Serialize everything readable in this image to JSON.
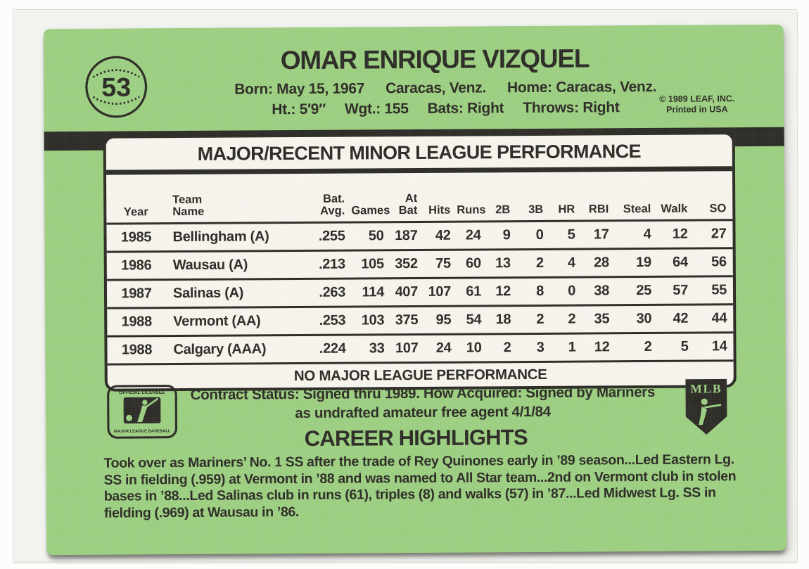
{
  "colors": {
    "card_green": "#9bce80",
    "ink": "#2b2a24",
    "panel": "#f5f3ec"
  },
  "header": {
    "card_number": "53",
    "player_name": "OMAR ENRIQUE VIZQUEL",
    "bio1": [
      "Born: May 15, 1967",
      "Caracas, Venz.",
      "Home: Caracas, Venz."
    ],
    "bio2": [
      "Ht.: 5′9″",
      "Wgt.: 155",
      "Bats: Right",
      "Throws: Right"
    ],
    "copyright_line1": "© 1989 LEAF, INC.",
    "copyright_line2": "Printed in USA"
  },
  "stats_table": {
    "title": "MAJOR/RECENT MINOR LEAGUE PERFORMANCE",
    "columns": [
      {
        "top": "",
        "bottom": "Year"
      },
      {
        "top": "Team",
        "bottom": "Name"
      },
      {
        "top": "Bat.",
        "bottom": "Avg."
      },
      {
        "top": "",
        "bottom": "Games"
      },
      {
        "top": "At",
        "bottom": "Bat"
      },
      {
        "top": "",
        "bottom": "Hits"
      },
      {
        "top": "",
        "bottom": "Runs"
      },
      {
        "top": "",
        "bottom": "2B"
      },
      {
        "top": "",
        "bottom": "3B"
      },
      {
        "top": "",
        "bottom": "HR"
      },
      {
        "top": "",
        "bottom": "RBI"
      },
      {
        "top": "",
        "bottom": "Steal"
      },
      {
        "top": "",
        "bottom": "Walk"
      },
      {
        "top": "",
        "bottom": "SO"
      }
    ],
    "rows": [
      [
        "1985",
        "Bellingham (A)",
        ".255",
        "50",
        "187",
        "42",
        "24",
        "9",
        "0",
        "5",
        "17",
        "4",
        "12",
        "27"
      ],
      [
        "1986",
        "Wausau (A)",
        ".213",
        "105",
        "352",
        "75",
        "60",
        "13",
        "2",
        "4",
        "28",
        "19",
        "64",
        "56"
      ],
      [
        "1987",
        "Salinas (A)",
        ".263",
        "114",
        "407",
        "107",
        "61",
        "12",
        "8",
        "0",
        "38",
        "25",
        "57",
        "55"
      ],
      [
        "1988",
        "Vermont (AA)",
        ".253",
        "103",
        "375",
        "95",
        "54",
        "18",
        "2",
        "2",
        "35",
        "30",
        "42",
        "44"
      ],
      [
        "1988",
        "Calgary (AAA)",
        ".224",
        "33",
        "107",
        "24",
        "10",
        "2",
        "3",
        "1",
        "12",
        "2",
        "5",
        "14"
      ]
    ],
    "footer": "NO MAJOR LEAGUE PERFORMANCE"
  },
  "contract": {
    "line1": "Contract Status: Signed thru 1989. How Acquired: Signed by Mariners",
    "line2": "as undrafted amateur free agent 4/1/84"
  },
  "career": {
    "heading": "CAREER HIGHLIGHTS",
    "text": "Took over as Mariners’ No. 1 SS after the trade of Rey Quinones early in ’89 season...Led Eastern Lg. SS in fielding (.959) at Vermont in ’88 and was named to All Star team...2nd on Vermont club in stolen bases in ’88...Led Salinas club in runs (61), triples (8) and walks (57) in ’87...Led Midwest Lg. SS in fielding (.969) at Wausau in ’86."
  },
  "logos": {
    "licensee_top": "OFFICIAL LICENSEE",
    "licensee_bottom": "MAJOR LEAGUE BASEBALL",
    "players_assoc": "MLB"
  }
}
